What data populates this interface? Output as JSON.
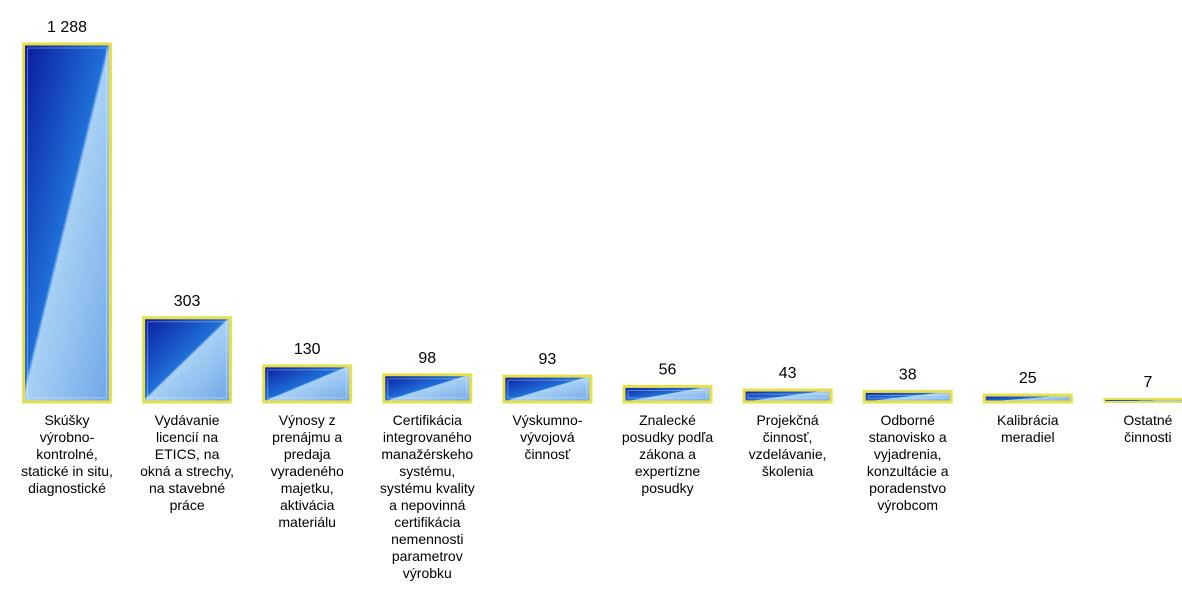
{
  "chart_data": {
    "type": "bar",
    "title": "",
    "xlabel": "",
    "ylabel": "",
    "ylim": [
      0,
      1288
    ],
    "grid": false,
    "legend": "none",
    "value_labels": [
      "1 288",
      "303",
      "130",
      "98",
      "93",
      "56",
      "43",
      "38",
      "25",
      "7"
    ],
    "categories": [
      [
        "Skúšky",
        "výrobno-",
        "kontrolné,",
        "statické in situ,",
        "diagnostické"
      ],
      [
        "Vydávanie",
        "licencií  na",
        "ETICS, na",
        "okná a strechy,",
        "na stavebné",
        "práce"
      ],
      [
        "Výnosy z",
        "prenájmu a",
        "predaja",
        "vyradeného",
        "majetku,",
        "aktivácia",
        "materiálu"
      ],
      [
        "Certifikácia",
        "integrovaného",
        "manažérskeho",
        "systému,",
        "systému kvality",
        "a nepovinná",
        "certifikácia",
        "nemennosti",
        "parametrov",
        "výrobku"
      ],
      [
        "Výskumno-",
        "vývojová",
        "činnosť"
      ],
      [
        "Znalecké",
        "posudky podľa",
        "zákona a",
        "expertízne",
        "posudky"
      ],
      [
        "Projekčná",
        "činnosť,",
        "vzdelávanie,",
        "školenia"
      ],
      [
        "Odborné",
        "stanovisko a",
        "vyjadrenia,",
        "konzultácie a",
        "poradenstvo",
        "výrobcom"
      ],
      [
        "Kalibrácia",
        "meradiel"
      ],
      [
        "Ostatné",
        "činnosti"
      ]
    ],
    "values": [
      1288,
      303,
      130,
      98,
      93,
      56,
      43,
      38,
      25,
      7
    ],
    "colors": {
      "bar_dark": "#0a1a9e",
      "bar_mid": "#1f6fd8",
      "bar_light": "#a8d0f4",
      "border": "#e8e04a"
    }
  }
}
